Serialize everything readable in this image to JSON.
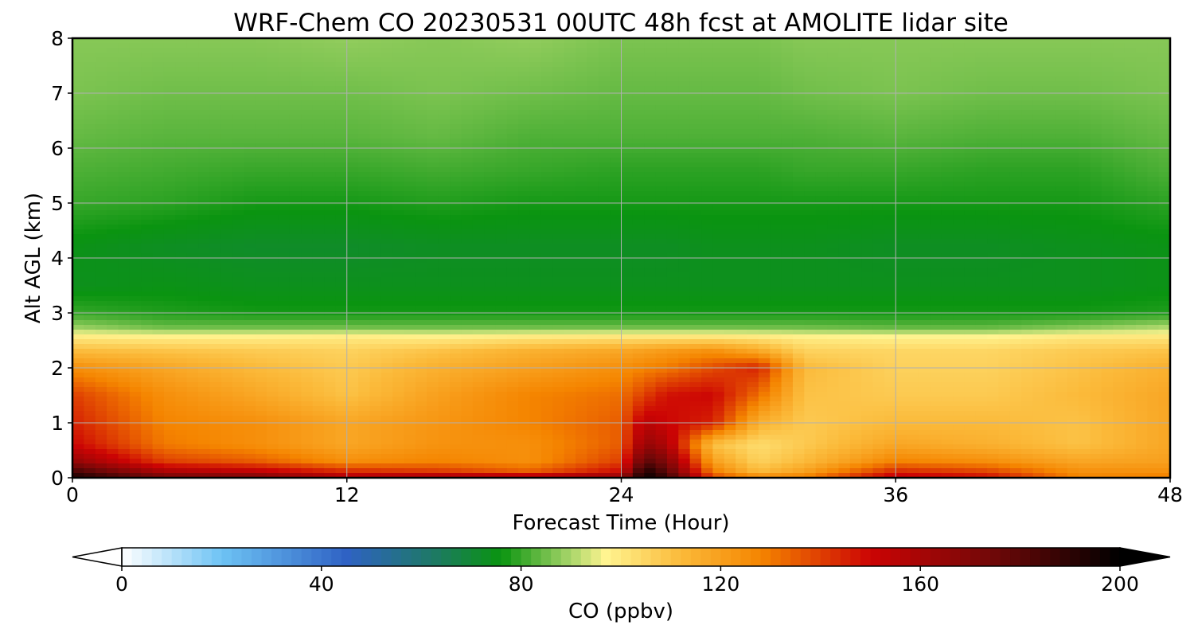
{
  "chart_data": {
    "type": "heatmap",
    "title": "WRF-Chem CO  20230531 00UTC 48h fcst at AMOLITE lidar site",
    "xlabel": "Forecast Time (Hour)",
    "ylabel": "Alt AGL (km)",
    "xlim": [
      0,
      48
    ],
    "ylim": [
      0,
      8
    ],
    "x_ticks": [
      0,
      12,
      24,
      36,
      48
    ],
    "y_ticks": [
      0,
      1,
      2,
      3,
      4,
      5,
      6,
      7,
      8
    ],
    "grid": true,
    "colorbar": {
      "label": "CO  (ppbv)",
      "range": [
        0,
        200
      ],
      "ticks": [
        0,
        40,
        80,
        120,
        160,
        200
      ],
      "extend": "both",
      "stops": [
        {
          "value": 0,
          "color": "#ffffff"
        },
        {
          "value": 20,
          "color": "#6ec3f4"
        },
        {
          "value": 45,
          "color": "#2f62c4"
        },
        {
          "value": 62,
          "color": "#1e7868"
        },
        {
          "value": 76,
          "color": "#0a9410"
        },
        {
          "value": 90,
          "color": "#a9d66a"
        },
        {
          "value": 97,
          "color": "#fff490"
        },
        {
          "value": 112,
          "color": "#fbba3a"
        },
        {
          "value": 128,
          "color": "#f58500"
        },
        {
          "value": 150,
          "color": "#cc0404"
        },
        {
          "value": 175,
          "color": "#6e0808"
        },
        {
          "value": 200,
          "color": "#000000"
        }
      ]
    },
    "x_hours": [
      0,
      4,
      8,
      12,
      16,
      20,
      24,
      25,
      26,
      28,
      30,
      32,
      36,
      40,
      44,
      48
    ],
    "y_km": [
      0,
      0.1,
      0.3,
      0.6,
      1.0,
      1.5,
      2.0,
      2.3,
      2.55,
      2.75,
      3.0,
      3.5,
      4.2,
      5.0,
      5.6,
      6.2,
      7.0,
      8.0
    ],
    "values_ppbv": [
      [
        195,
        175,
        175,
        160,
        165,
        165,
        168,
        198,
        188,
        140,
        130,
        130,
        155,
        150,
        128,
        130
      ],
      [
        185,
        160,
        155,
        145,
        142,
        135,
        150,
        195,
        180,
        130,
        112,
        120,
        145,
        140,
        125,
        125
      ],
      [
        165,
        140,
        135,
        125,
        128,
        125,
        140,
        180,
        170,
        120,
        106,
        112,
        128,
        125,
        118,
        120
      ],
      [
        150,
        130,
        125,
        118,
        124,
        125,
        135,
        165,
        158,
        110,
        103,
        108,
        118,
        115,
        110,
        118
      ],
      [
        145,
        128,
        125,
        118,
        123,
        128,
        135,
        155,
        150,
        145,
        115,
        108,
        112,
        112,
        110,
        118
      ],
      [
        140,
        125,
        118,
        110,
        120,
        128,
        132,
        140,
        148,
        150,
        132,
        110,
        108,
        108,
        112,
        118
      ],
      [
        125,
        118,
        112,
        108,
        115,
        120,
        125,
        128,
        130,
        138,
        145,
        112,
        106,
        106,
        110,
        115
      ],
      [
        112,
        110,
        108,
        106,
        110,
        115,
        118,
        120,
        122,
        125,
        118,
        106,
        105,
        105,
        108,
        110
      ],
      [
        100,
        99,
        99,
        100,
        99,
        101,
        102,
        102,
        102,
        102,
        101,
        99,
        98,
        98,
        101,
        101
      ],
      [
        88,
        84,
        84,
        84,
        84,
        84,
        84,
        84,
        84,
        84,
        84,
        84,
        83,
        83,
        86,
        90
      ],
      [
        80,
        78,
        77,
        77,
        77,
        77,
        77,
        77,
        77,
        77,
        77,
        77,
        77,
        77,
        77,
        78
      ],
      [
        74,
        75,
        74,
        74,
        74,
        74,
        74,
        74,
        74,
        74,
        74,
        74,
        74,
        74,
        74,
        75
      ],
      [
        75,
        73,
        72,
        72,
        73,
        73,
        73,
        73,
        73,
        74,
        74,
        74,
        73,
        73,
        74,
        75
      ],
      [
        80,
        79,
        77,
        77,
        78,
        77,
        77,
        77,
        77,
        77,
        77,
        77,
        77,
        77,
        77,
        79
      ],
      [
        82,
        81,
        80,
        80,
        81,
        80,
        79,
        79,
        79,
        79,
        79,
        80,
        80,
        79,
        79,
        82
      ],
      [
        84,
        83,
        83,
        83,
        84,
        82,
        82,
        82,
        82,
        82,
        82,
        82,
        83,
        82,
        82,
        84
      ],
      [
        86,
        85,
        85,
        85,
        86,
        85,
        84,
        84,
        84,
        84,
        84,
        85,
        86,
        85,
        85,
        86
      ],
      [
        87,
        87,
        87,
        88,
        87,
        88,
        86,
        86,
        86,
        86,
        86,
        87,
        87,
        87,
        87,
        87
      ]
    ]
  }
}
